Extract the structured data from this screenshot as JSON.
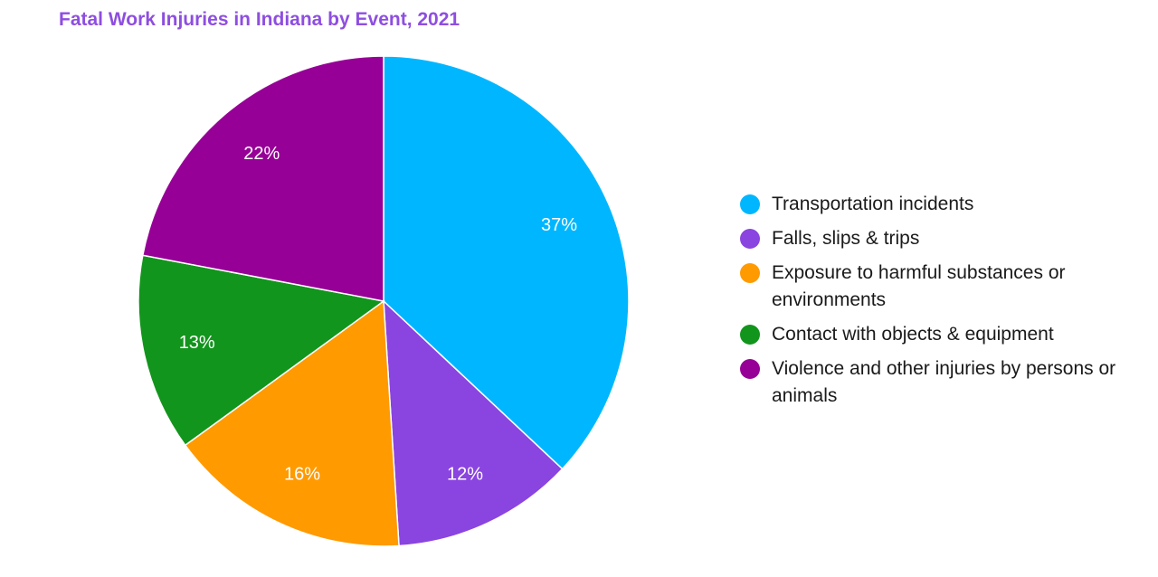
{
  "chart_data": {
    "type": "pie",
    "title": "Fatal Work Injuries in Indiana by Event, 2021",
    "legend_position": "right",
    "start_angle_deg": 0,
    "direction": "clockwise",
    "slices": [
      {
        "name": "Transportation incidents",
        "value": 37,
        "label": "37%",
        "color": "#00b7ff"
      },
      {
        "name": "Falls, slips & trips",
        "value": 12,
        "label": "12%",
        "color": "#8a44e0"
      },
      {
        "name": "Exposure to harmful substances or environments",
        "value": 16,
        "label": "16%",
        "color": "#ff9a00"
      },
      {
        "name": "Contact with objects & equipment",
        "value": 13,
        "label": "13%",
        "color": "#12951c"
      },
      {
        "name": "Violence and other injuries by persons or animals",
        "value": 22,
        "label": "22%",
        "color": "#960096"
      }
    ]
  }
}
